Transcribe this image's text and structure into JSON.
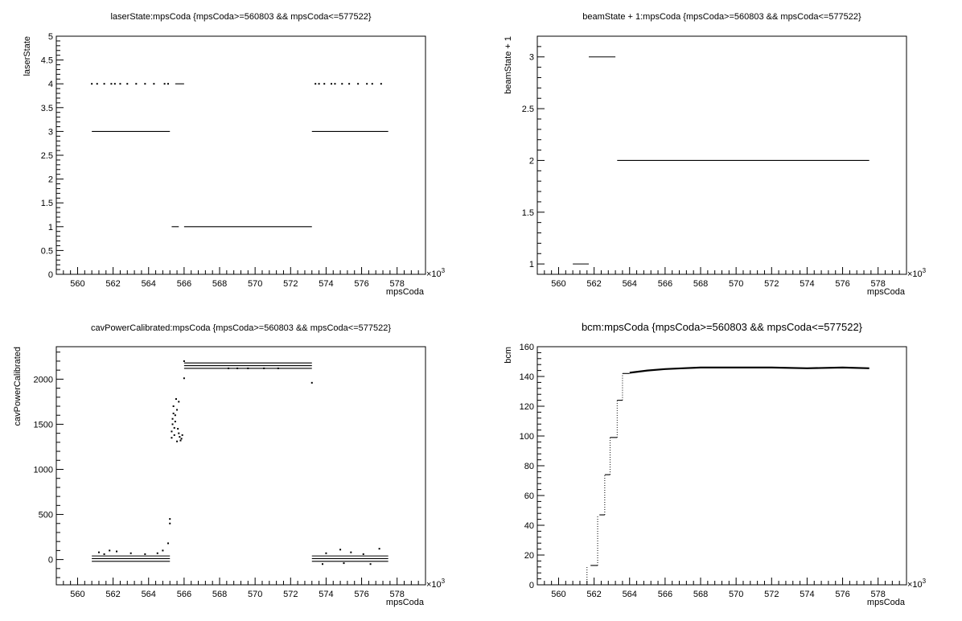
{
  "chart_data": [
    {
      "type": "scatter",
      "title": "laserState:mpsCoda {mpsCoda>=560803 && mpsCoda<=577522}",
      "xlabel": "mpsCoda",
      "ylabel": "laserState",
      "x_multiplier": "×10",
      "x_multiplier_exp": "3",
      "xlim": [
        558.8,
        579.6
      ],
      "ylim": [
        0,
        5
      ],
      "xticks": [
        "560",
        "562",
        "564",
        "566",
        "568",
        "570",
        "572",
        "574",
        "576",
        "578"
      ],
      "yticks": [
        "0",
        "0.5",
        "1",
        "1.5",
        "2",
        "2.5",
        "3",
        "3.5",
        "4",
        "4.5",
        "5"
      ],
      "segments": [
        {
          "x0": 560.8,
          "x1": 565.2,
          "y": 3
        },
        {
          "x0": 573.2,
          "x1": 577.5,
          "y": 3
        },
        {
          "x0": 565.3,
          "x1": 565.7,
          "y": 1
        },
        {
          "x0": 566.0,
          "x1": 573.2,
          "y": 1
        },
        {
          "x0": 565.5,
          "x1": 566.0,
          "y": 4
        }
      ],
      "points": [
        {
          "x": 560.8,
          "y": 4
        },
        {
          "x": 561.1,
          "y": 4
        },
        {
          "x": 561.5,
          "y": 4
        },
        {
          "x": 561.9,
          "y": 4
        },
        {
          "x": 562.1,
          "y": 4
        },
        {
          "x": 562.4,
          "y": 4
        },
        {
          "x": 562.8,
          "y": 4
        },
        {
          "x": 563.3,
          "y": 4
        },
        {
          "x": 563.8,
          "y": 4
        },
        {
          "x": 564.3,
          "y": 4
        },
        {
          "x": 564.9,
          "y": 4
        },
        {
          "x": 565.1,
          "y": 4
        },
        {
          "x": 573.4,
          "y": 4
        },
        {
          "x": 573.6,
          "y": 4
        },
        {
          "x": 573.9,
          "y": 4
        },
        {
          "x": 574.3,
          "y": 4
        },
        {
          "x": 574.5,
          "y": 4
        },
        {
          "x": 574.9,
          "y": 4
        },
        {
          "x": 575.3,
          "y": 4
        },
        {
          "x": 575.8,
          "y": 4
        },
        {
          "x": 576.3,
          "y": 4
        },
        {
          "x": 576.6,
          "y": 4
        },
        {
          "x": 577.1,
          "y": 4
        }
      ]
    },
    {
      "type": "scatter",
      "title": "beamState + 1:mpsCoda {mpsCoda>=560803 && mpsCoda<=577522}",
      "xlabel": "mpsCoda",
      "ylabel": "beamState + 1",
      "x_multiplier": "×10",
      "x_multiplier_exp": "3",
      "xlim": [
        558.8,
        579.6
      ],
      "ylim": [
        0.9,
        3.2
      ],
      "xticks": [
        "560",
        "562",
        "564",
        "566",
        "568",
        "570",
        "572",
        "574",
        "576",
        "578"
      ],
      "yticks": [
        "1",
        "1.5",
        "2",
        "2.5",
        "3"
      ],
      "segments": [
        {
          "x0": 560.8,
          "x1": 561.7,
          "y": 1
        },
        {
          "x0": 561.7,
          "x1": 563.2,
          "y": 3
        },
        {
          "x0": 563.3,
          "x1": 577.5,
          "y": 2
        }
      ],
      "points": []
    },
    {
      "type": "scatter",
      "title": "cavPowerCalibrated:mpsCoda {mpsCoda>=560803 && mpsCoda<=577522}",
      "xlabel": "mpsCoda",
      "ylabel": "cavPowerCalibrated",
      "x_multiplier": "×10",
      "x_multiplier_exp": "3",
      "xlim": [
        558.8,
        579.6
      ],
      "ylim": [
        -280,
        2360
      ],
      "xticks": [
        "560",
        "562",
        "564",
        "566",
        "568",
        "570",
        "572",
        "574",
        "576",
        "578"
      ],
      "yticks": [
        "0",
        "500",
        "1000",
        "1500",
        "2000"
      ],
      "segments": [
        {
          "x0": 560.8,
          "x1": 565.2,
          "y": 40
        },
        {
          "x0": 560.8,
          "x1": 565.2,
          "y": 10
        },
        {
          "x0": 560.8,
          "x1": 565.2,
          "y": -20
        },
        {
          "x0": 573.2,
          "x1": 577.5,
          "y": 40
        },
        {
          "x0": 573.2,
          "x1": 577.5,
          "y": 10
        },
        {
          "x0": 573.2,
          "x1": 577.5,
          "y": -20
        },
        {
          "x0": 566.0,
          "x1": 573.2,
          "y": 2180
        },
        {
          "x0": 566.0,
          "x1": 573.2,
          "y": 2150
        },
        {
          "x0": 566.0,
          "x1": 573.2,
          "y": 2120
        }
      ],
      "points": [
        {
          "x": 561.2,
          "y": 80
        },
        {
          "x": 561.8,
          "y": 100
        },
        {
          "x": 562.2,
          "y": 90
        },
        {
          "x": 561.5,
          "y": 60
        },
        {
          "x": 563.0,
          "y": 70
        },
        {
          "x": 563.8,
          "y": 60
        },
        {
          "x": 564.5,
          "y": 70
        },
        {
          "x": 564.8,
          "y": 100
        },
        {
          "x": 565.1,
          "y": 180
        },
        {
          "x": 565.2,
          "y": 400
        },
        {
          "x": 565.2,
          "y": 450
        },
        {
          "x": 565.3,
          "y": 1350
        },
        {
          "x": 565.3,
          "y": 1420
        },
        {
          "x": 565.35,
          "y": 1500
        },
        {
          "x": 565.35,
          "y": 1560
        },
        {
          "x": 565.4,
          "y": 1620
        },
        {
          "x": 565.4,
          "y": 1700
        },
        {
          "x": 565.45,
          "y": 1460
        },
        {
          "x": 565.45,
          "y": 1380
        },
        {
          "x": 565.5,
          "y": 1600
        },
        {
          "x": 565.5,
          "y": 1530
        },
        {
          "x": 565.55,
          "y": 1780
        },
        {
          "x": 565.6,
          "y": 1660
        },
        {
          "x": 565.6,
          "y": 1310
        },
        {
          "x": 565.65,
          "y": 1450
        },
        {
          "x": 565.7,
          "y": 1400
        },
        {
          "x": 565.7,
          "y": 1750
        },
        {
          "x": 565.75,
          "y": 1360
        },
        {
          "x": 565.8,
          "y": 1320
        },
        {
          "x": 565.85,
          "y": 1340
        },
        {
          "x": 565.9,
          "y": 1380
        },
        {
          "x": 566.0,
          "y": 2200
        },
        {
          "x": 566.0,
          "y": 2010
        },
        {
          "x": 573.2,
          "y": 1960
        },
        {
          "x": 568.5,
          "y": 2120
        },
        {
          "x": 569.0,
          "y": 2120
        },
        {
          "x": 569.6,
          "y": 2120
        },
        {
          "x": 570.5,
          "y": 2120
        },
        {
          "x": 571.3,
          "y": 2120
        },
        {
          "x": 574.0,
          "y": 70
        },
        {
          "x": 574.8,
          "y": 110
        },
        {
          "x": 575.4,
          "y": 80
        },
        {
          "x": 576.1,
          "y": 60
        },
        {
          "x": 577.0,
          "y": 120
        },
        {
          "x": 573.8,
          "y": -50
        },
        {
          "x": 575.0,
          "y": -40
        },
        {
          "x": 576.5,
          "y": -50
        }
      ]
    },
    {
      "type": "scatter",
      "title": "bcm:mpsCoda {mpsCoda>=560803 && mpsCoda<=577522}",
      "xlabel": "mpsCoda",
      "ylabel": "bcm",
      "x_multiplier": "×10",
      "x_multiplier_exp": "3",
      "xlim": [
        558.8,
        579.6
      ],
      "ylim": [
        0,
        160
      ],
      "xticks": [
        "560",
        "562",
        "564",
        "566",
        "568",
        "570",
        "572",
        "574",
        "576",
        "578"
      ],
      "yticks": [
        "0",
        "20",
        "40",
        "60",
        "80",
        "100",
        "120",
        "140",
        "160"
      ],
      "segments": [
        {
          "x0": 561.8,
          "x1": 562.2,
          "y": 13
        },
        {
          "x0": 562.3,
          "x1": 562.6,
          "y": 47
        },
        {
          "x0": 562.6,
          "x1": 562.9,
          "y": 74
        },
        {
          "x0": 562.9,
          "x1": 563.3,
          "y": 99
        },
        {
          "x0": 563.3,
          "x1": 563.6,
          "y": 124
        },
        {
          "x0": 563.6,
          "x1": 564.0,
          "y": 142
        }
      ],
      "curve": [
        {
          "x": 564.0,
          "y": 142.5
        },
        {
          "x": 565.0,
          "y": 144
        },
        {
          "x": 566.0,
          "y": 145
        },
        {
          "x": 567.0,
          "y": 145.5
        },
        {
          "x": 568.0,
          "y": 146
        },
        {
          "x": 570.0,
          "y": 146
        },
        {
          "x": 572.0,
          "y": 146
        },
        {
          "x": 574.0,
          "y": 145.5
        },
        {
          "x": 576.0,
          "y": 146
        },
        {
          "x": 577.5,
          "y": 145.5
        }
      ],
      "risers": [
        {
          "x": 561.6,
          "y0": 0,
          "y1": 13
        },
        {
          "x": 562.2,
          "y0": 13,
          "y1": 47
        },
        {
          "x": 562.6,
          "y0": 47,
          "y1": 74
        },
        {
          "x": 562.9,
          "y0": 74,
          "y1": 99
        },
        {
          "x": 563.3,
          "y0": 99,
          "y1": 124
        },
        {
          "x": 563.6,
          "y0": 124,
          "y1": 142
        }
      ],
      "points": []
    }
  ]
}
